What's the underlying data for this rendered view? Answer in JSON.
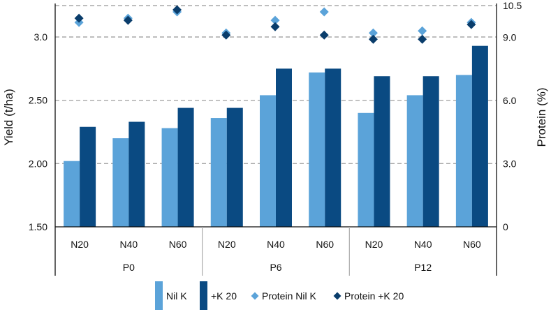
{
  "chart_data": {
    "type": "bar",
    "categories": [
      "N20",
      "N40",
      "N60",
      "N20",
      "N40",
      "N60",
      "N20",
      "N40",
      "N60"
    ],
    "groups": [
      {
        "label": "P0",
        "count": 3
      },
      {
        "label": "P6",
        "count": 3
      },
      {
        "label": "P12",
        "count": 3
      }
    ],
    "series": [
      {
        "name": "Nil K",
        "kind": "bar",
        "axis": "left",
        "color": "#5ba3d9",
        "values": [
          2.02,
          2.2,
          2.28,
          2.36,
          2.54,
          2.72,
          2.4,
          2.54,
          2.7
        ]
      },
      {
        "name": "+K 20",
        "kind": "bar",
        "axis": "left",
        "color": "#0a4a82",
        "values": [
          2.29,
          2.33,
          2.44,
          2.44,
          2.75,
          2.75,
          2.69,
          2.69,
          2.93
        ]
      },
      {
        "name": "Protein Nil K",
        "kind": "scatter",
        "marker": "diamond",
        "axis": "right",
        "color": "#5ba3d9",
        "values": [
          9.7,
          9.9,
          10.2,
          9.2,
          9.8,
          10.2,
          9.2,
          9.3,
          9.7
        ]
      },
      {
        "name": "Protein +K 20",
        "kind": "scatter",
        "marker": "diamond",
        "axis": "right",
        "color": "#0a3d6b",
        "values": [
          9.9,
          9.8,
          10.3,
          9.1,
          9.5,
          9.1,
          8.9,
          8.9,
          9.6
        ]
      }
    ],
    "ylabel": "Yield (t/ha)",
    "ylim": [
      1.5,
      3.25
    ],
    "yticks": [
      "1.50",
      "2.00",
      "2.50",
      "3.0"
    ],
    "ytick_values": [
      1.5,
      2.0,
      2.5,
      3.0
    ],
    "y2label": "Protein (%)",
    "y2lim": [
      0,
      10.5
    ],
    "y2ticks": [
      "0",
      "3.0",
      "6.0",
      "9.0",
      "10.5"
    ],
    "y2tick_values": [
      0,
      3.0,
      6.0,
      9.0,
      10.5
    ],
    "grid": "horizontal dashed",
    "legend_position": "bottom-center"
  }
}
